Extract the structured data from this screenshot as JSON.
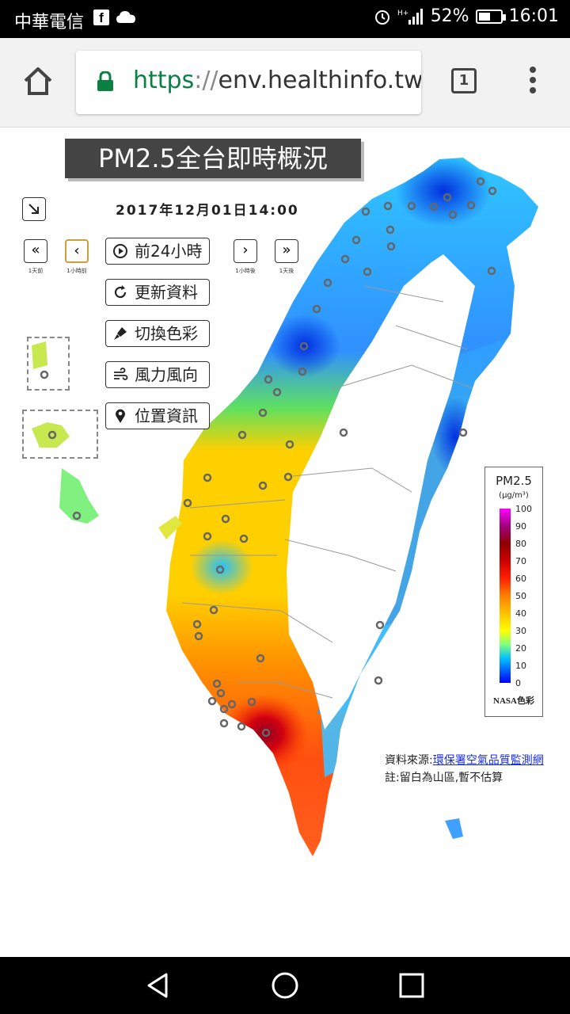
{
  "status_bar": {
    "carrier": "中華電信",
    "battery_percent": "52%",
    "battery_level": 0.52,
    "time": "16:01",
    "icons": [
      "facebook-icon",
      "cloud-icon",
      "alarm-icon",
      "signal-icon",
      "battery-icon"
    ]
  },
  "browser": {
    "url_scheme": "https",
    "url_sep": "://",
    "url_host": "env.healthinfo.tw/",
    "tab_count": "1"
  },
  "page": {
    "title": "PM2.5全台即時概況",
    "datetime": "2017年12月01日14:00",
    "nav": [
      {
        "symbol": "«",
        "caption": "1天前"
      },
      {
        "symbol": "‹",
        "caption": "1小時前"
      },
      {
        "symbol": "›",
        "caption": "1小時後"
      },
      {
        "symbol": "»",
        "caption": "1天後"
      }
    ],
    "controls": {
      "past24": "前24小時",
      "refresh": "更新資料",
      "color": "切換色彩",
      "wind": "風力風向",
      "location": "位置資訊"
    },
    "legend": {
      "title": "PM2.5",
      "unit": "(µg/m³)",
      "ticks": [
        "100",
        "90",
        "80",
        "70",
        "60",
        "50",
        "40",
        "30",
        "20",
        "10",
        "0"
      ],
      "source": "NASA色彩"
    },
    "source_label": "資料來源:",
    "source_link": "環保署空氣品質監測網",
    "note": "註:留白為山區,暫不估算"
  },
  "colors": {
    "title_bg": "#444444",
    "url_green": "#0a8043",
    "link_blue": "#1a2ee8"
  }
}
